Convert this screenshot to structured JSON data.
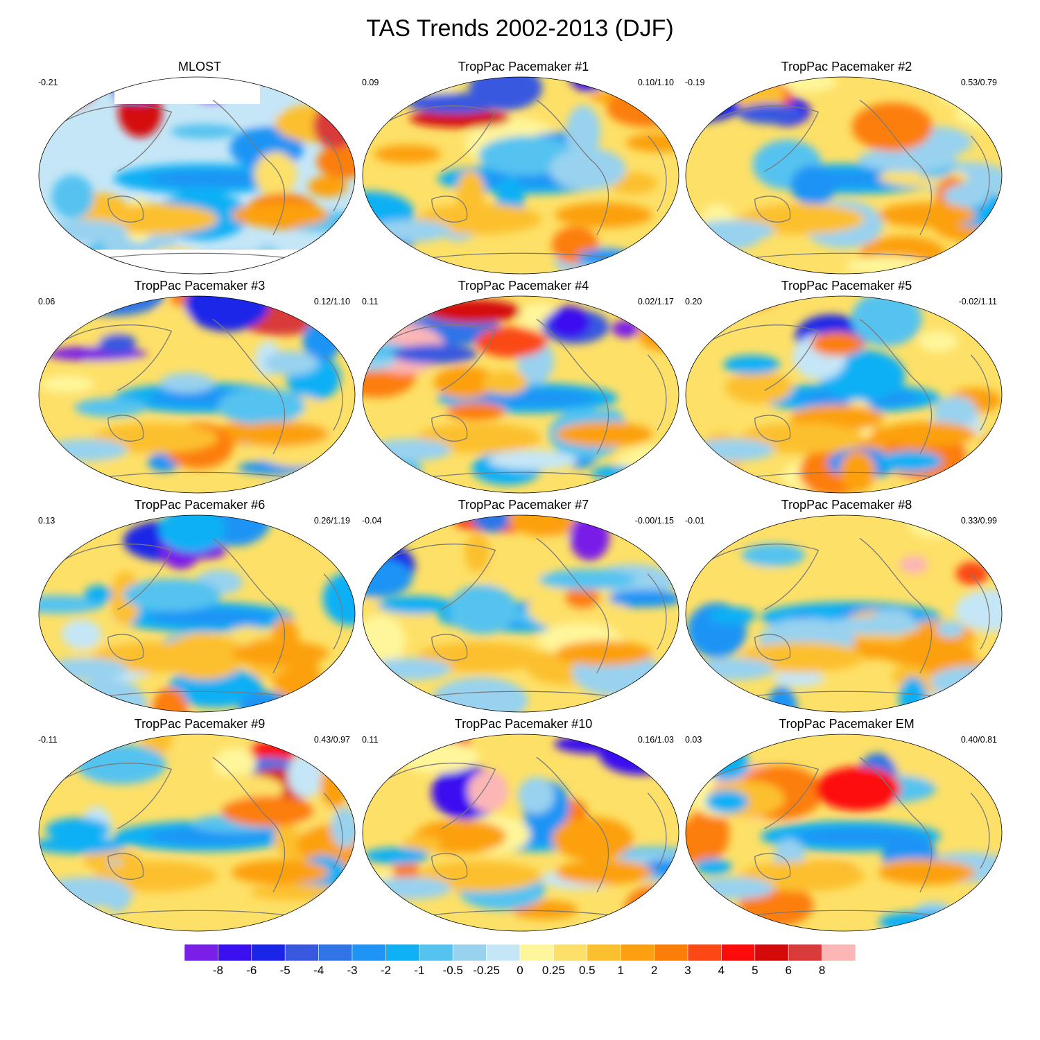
{
  "title": "TAS Trends 2002-2013 (DJF)",
  "chart_data": {
    "type": "map-panels",
    "title": "TAS Trends 2002-2013 (DJF)",
    "panels": [
      {
        "title": "MLOST",
        "left_stat": "-0.21",
        "right_stat": ""
      },
      {
        "title": "TropPac Pacemaker #1",
        "left_stat": "0.09",
        "right_stat": "0.10/1.10"
      },
      {
        "title": "TropPac Pacemaker #2",
        "left_stat": "-0.19",
        "right_stat": "0.53/0.79"
      },
      {
        "title": "TropPac Pacemaker #3",
        "left_stat": "0.06",
        "right_stat": "0.12/1.10"
      },
      {
        "title": "TropPac Pacemaker #4",
        "left_stat": "0.11",
        "right_stat": "0.02/1.17"
      },
      {
        "title": "TropPac Pacemaker #5",
        "left_stat": "0.20",
        "right_stat": "-0.02/1.11"
      },
      {
        "title": "TropPac Pacemaker #6",
        "left_stat": "0.13",
        "right_stat": "0.26/1.19"
      },
      {
        "title": "TropPac Pacemaker #7",
        "left_stat": "-0.04",
        "right_stat": "-0.00/1.15"
      },
      {
        "title": "TropPac Pacemaker #8",
        "left_stat": "-0.01",
        "right_stat": "0.33/0.99"
      },
      {
        "title": "TropPac Pacemaker #9",
        "left_stat": "-0.11",
        "right_stat": "0.43/0.97"
      },
      {
        "title": "TropPac Pacemaker #10",
        "left_stat": "0.11",
        "right_stat": "0.16/1.03"
      },
      {
        "title": "TropPac Pacemaker EM",
        "left_stat": "0.03",
        "right_stat": "0.40/0.81"
      }
    ],
    "colorbar": {
      "levels": [
        "-8",
        "-6",
        "-5",
        "-4",
        "-3",
        "-2",
        "-1",
        "-0.5",
        "-0.25",
        "0",
        "0.25",
        "0.5",
        "1",
        "2",
        "3",
        "4",
        "5",
        "6",
        "8"
      ],
      "colors": [
        "#7a1fe8",
        "#3a10f0",
        "#1a25e8",
        "#3858e0",
        "#2f75e8",
        "#1f94f5",
        "#10b0f5",
        "#55c3f0",
        "#98d2ef",
        "#c5e6f6",
        "#fff59a",
        "#fde067",
        "#fcc02f",
        "#fca011",
        "#fc7e08",
        "#fb4814",
        "#fd0b0b",
        "#d40a0a",
        "#d93a3a",
        "#fcb6b6"
      ]
    }
  }
}
